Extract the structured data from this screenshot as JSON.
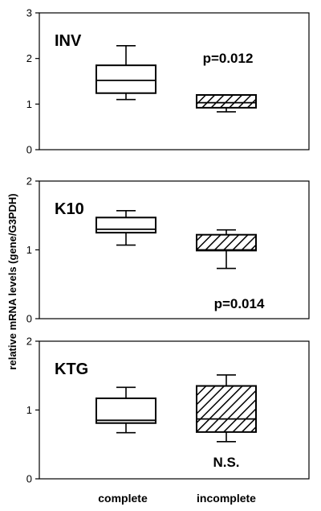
{
  "figure": {
    "ylabel": "relative mRNA levels (gene/G3PDH)",
    "categories": [
      "complete",
      "incomplete"
    ]
  },
  "chart_data": [
    {
      "type": "box",
      "title": "INV",
      "annotation": "p=0.012",
      "ylim": [
        0,
        3
      ],
      "yticks": [
        0,
        1,
        2,
        3
      ],
      "categories": [
        "complete",
        "incomplete"
      ],
      "boxes": [
        {
          "category": "complete",
          "whisker_low": 1.1,
          "q1": 1.24,
          "median": 1.52,
          "q3": 1.85,
          "whisker_high": 2.28,
          "hatched": false
        },
        {
          "category": "incomplete",
          "whisker_low": 0.83,
          "q1": 0.92,
          "median": 1.03,
          "q3": 1.2,
          "whisker_high": 1.2,
          "hatched": true
        }
      ]
    },
    {
      "type": "box",
      "title": "K10",
      "annotation": "p=0.014",
      "ylim": [
        0,
        2
      ],
      "yticks": [
        0,
        1,
        2
      ],
      "categories": [
        "complete",
        "incomplete"
      ],
      "boxes": [
        {
          "category": "complete",
          "whisker_low": 1.07,
          "q1": 1.25,
          "median": 1.3,
          "q3": 1.47,
          "whisker_high": 1.57,
          "hatched": false
        },
        {
          "category": "incomplete",
          "whisker_low": 0.73,
          "q1": 0.99,
          "median": 1.0,
          "q3": 1.22,
          "whisker_high": 1.29,
          "hatched": true
        }
      ]
    },
    {
      "type": "box",
      "title": "KTG",
      "annotation": "N.S.",
      "ylim": [
        0,
        2
      ],
      "yticks": [
        0,
        1,
        2
      ],
      "categories": [
        "complete",
        "incomplete"
      ],
      "boxes": [
        {
          "category": "complete",
          "whisker_low": 0.67,
          "q1": 0.81,
          "median": 0.85,
          "q3": 1.17,
          "whisker_high": 1.33,
          "hatched": false
        },
        {
          "category": "incomplete",
          "whisker_low": 0.54,
          "q1": 0.68,
          "median": 0.87,
          "q3": 1.35,
          "whisker_high": 1.51,
          "hatched": true
        }
      ]
    }
  ]
}
